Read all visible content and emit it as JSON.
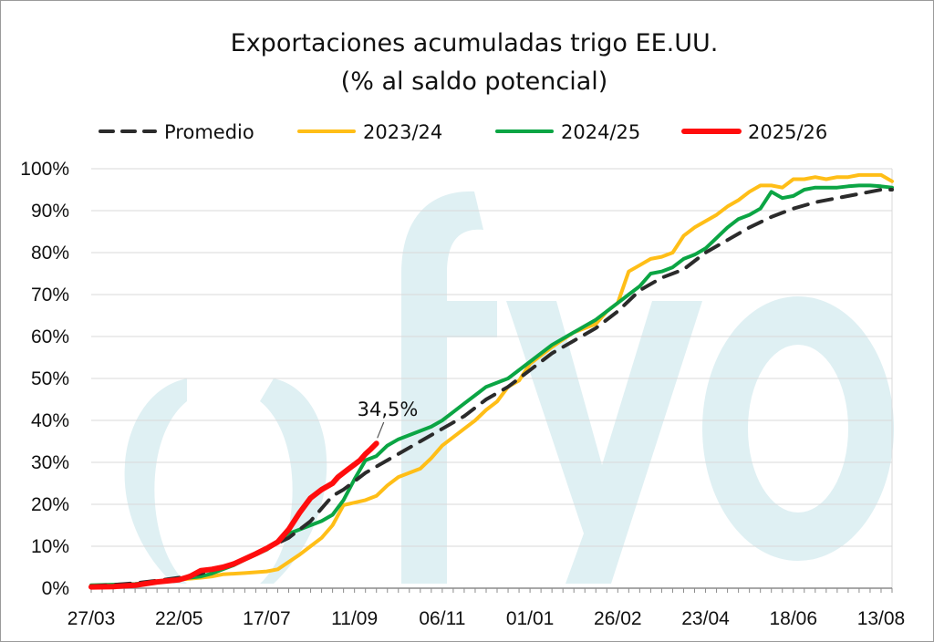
{
  "chart_data": {
    "type": "line",
    "title": [
      "Exportaciones acumuladas trigo EE.UU.",
      "(% al saldo potencial)"
    ],
    "xlabel": "",
    "ylabel": "",
    "x_tick_labels": [
      "27/03",
      "22/05",
      "17/07",
      "11/09",
      "06/11",
      "01/01",
      "26/02",
      "23/04",
      "18/06",
      "13/08"
    ],
    "x_range_weeks": [
      0,
      73
    ],
    "x_tick_week_positions": [
      0,
      8,
      16,
      24,
      32,
      40,
      48,
      56,
      64,
      72
    ],
    "y_ticks": [
      "0%",
      "10%",
      "20%",
      "30%",
      "40%",
      "50%",
      "60%",
      "70%",
      "80%",
      "90%",
      "100%"
    ],
    "ylim": [
      0,
      100
    ],
    "grid": "horizontal",
    "legend_position": "top",
    "annotation": {
      "text": "34,5%",
      "week": 26,
      "value": 34.5
    },
    "watermark": "fyo",
    "series": [
      {
        "name": "Promedio",
        "color": "#2b2b2b",
        "dash": true,
        "points": [
          [
            0,
            0.5
          ],
          [
            2,
            0.8
          ],
          [
            4,
            1.2
          ],
          [
            6,
            1.8
          ],
          [
            8,
            2.5
          ],
          [
            10,
            3.5
          ],
          [
            12,
            5
          ],
          [
            14,
            7
          ],
          [
            16,
            9.5
          ],
          [
            18,
            12
          ],
          [
            20,
            16
          ],
          [
            21,
            19
          ],
          [
            22,
            22
          ],
          [
            23,
            23.5
          ],
          [
            24,
            25.5
          ],
          [
            25,
            27.5
          ],
          [
            26,
            29
          ],
          [
            28,
            32
          ],
          [
            30,
            35
          ],
          [
            32,
            38
          ],
          [
            34,
            41
          ],
          [
            36,
            45
          ],
          [
            38,
            48
          ],
          [
            40,
            52
          ],
          [
            42,
            56
          ],
          [
            44,
            59
          ],
          [
            46,
            62
          ],
          [
            48,
            66
          ],
          [
            50,
            71
          ],
          [
            52,
            74
          ],
          [
            54,
            76
          ],
          [
            56,
            80
          ],
          [
            58,
            83
          ],
          [
            60,
            86
          ],
          [
            62,
            88.5
          ],
          [
            64,
            90.5
          ],
          [
            66,
            92
          ],
          [
            68,
            93
          ],
          [
            70,
            94
          ],
          [
            72,
            95
          ],
          [
            73,
            95
          ]
        ]
      },
      {
        "name": "2023/24",
        "color": "#ffbe17",
        "dash": false,
        "points": [
          [
            0,
            0.5
          ],
          [
            4,
            1
          ],
          [
            7,
            1.8
          ],
          [
            10,
            2.5
          ],
          [
            11,
            2.8
          ],
          [
            12,
            3.3
          ],
          [
            14,
            3.6
          ],
          [
            16,
            4
          ],
          [
            17,
            4.5
          ],
          [
            19,
            8
          ],
          [
            20,
            10
          ],
          [
            21,
            12
          ],
          [
            22,
            15
          ],
          [
            23,
            19.8
          ],
          [
            25,
            21
          ],
          [
            26,
            22
          ],
          [
            27,
            24.5
          ],
          [
            28,
            26.5
          ],
          [
            30,
            28.5
          ],
          [
            31,
            31
          ],
          [
            32,
            34
          ],
          [
            34,
            38
          ],
          [
            35,
            40
          ],
          [
            36,
            42.5
          ],
          [
            37,
            44.5
          ],
          [
            38,
            48
          ],
          [
            39,
            49.5
          ],
          [
            40,
            53.5
          ],
          [
            42,
            57.5
          ],
          [
            44,
            61
          ],
          [
            46,
            63
          ],
          [
            47,
            66
          ],
          [
            48,
            68
          ],
          [
            49,
            75.5
          ],
          [
            50,
            77
          ],
          [
            51,
            78.5
          ],
          [
            52,
            79
          ],
          [
            53,
            80
          ],
          [
            54,
            84
          ],
          [
            55,
            86
          ],
          [
            57,
            89
          ],
          [
            58,
            91
          ],
          [
            59,
            92.5
          ],
          [
            60,
            94.5
          ],
          [
            61,
            96
          ],
          [
            62,
            96
          ],
          [
            63,
            95.5
          ],
          [
            64,
            97.5
          ],
          [
            65,
            97.5
          ],
          [
            66,
            98
          ],
          [
            67,
            97.5
          ],
          [
            68,
            98
          ],
          [
            69,
            98
          ],
          [
            70,
            98.5
          ],
          [
            71,
            98.5
          ],
          [
            72,
            98.5
          ],
          [
            73,
            97
          ]
        ]
      },
      {
        "name": "2024/25",
        "color": "#0ba544",
        "dash": false,
        "points": [
          [
            0,
            0.7
          ],
          [
            4,
            1
          ],
          [
            6,
            1.5
          ],
          [
            8,
            2.2
          ],
          [
            10,
            2.8
          ],
          [
            11,
            3.5
          ],
          [
            12,
            4.5
          ],
          [
            13,
            5.5
          ],
          [
            14,
            6.8
          ],
          [
            16,
            9.2
          ],
          [
            17,
            11
          ],
          [
            18,
            13
          ],
          [
            19,
            14
          ],
          [
            20,
            15
          ],
          [
            21,
            16
          ],
          [
            22,
            17.5
          ],
          [
            23,
            21
          ],
          [
            24,
            26
          ],
          [
            25,
            30.5
          ],
          [
            26,
            31.5
          ],
          [
            27,
            34
          ],
          [
            28,
            35.5
          ],
          [
            29,
            36.5
          ],
          [
            30,
            37.5
          ],
          [
            31,
            38.5
          ],
          [
            32,
            40
          ],
          [
            33,
            42
          ],
          [
            34,
            44
          ],
          [
            35,
            46
          ],
          [
            36,
            48
          ],
          [
            38,
            50
          ],
          [
            40,
            54
          ],
          [
            42,
            58
          ],
          [
            44,
            61
          ],
          [
            46,
            64
          ],
          [
            48,
            68
          ],
          [
            49,
            70
          ],
          [
            50,
            72
          ],
          [
            51,
            75
          ],
          [
            52,
            75.5
          ],
          [
            53,
            76.5
          ],
          [
            54,
            78.5
          ],
          [
            55,
            79.5
          ],
          [
            56,
            81
          ],
          [
            57,
            83.5
          ],
          [
            58,
            86
          ],
          [
            59,
            88
          ],
          [
            60,
            89
          ],
          [
            61,
            90.5
          ],
          [
            62,
            94.5
          ],
          [
            63,
            93
          ],
          [
            64,
            93.5
          ],
          [
            65,
            95
          ],
          [
            66,
            95.5
          ],
          [
            67,
            95.5
          ],
          [
            68,
            95.5
          ],
          [
            69,
            95.8
          ],
          [
            70,
            96
          ],
          [
            71,
            96
          ],
          [
            72,
            95.8
          ],
          [
            73,
            95.5
          ]
        ]
      },
      {
        "name": "2025/26",
        "color": "#ff0d0d",
        "dash": false,
        "points": [
          [
            0,
            0.3
          ],
          [
            2,
            0.4
          ],
          [
            4,
            0.7
          ],
          [
            6,
            1.5
          ],
          [
            8,
            2
          ],
          [
            9,
            2.8
          ],
          [
            10,
            4.2
          ],
          [
            11,
            4.5
          ],
          [
            12,
            5
          ],
          [
            13,
            5.8
          ],
          [
            14,
            7
          ],
          [
            15,
            8.2
          ],
          [
            16,
            9.5
          ],
          [
            17,
            11
          ],
          [
            18,
            14
          ],
          [
            19,
            18
          ],
          [
            20,
            21.5
          ],
          [
            21,
            23.5
          ],
          [
            22,
            25
          ],
          [
            22.5,
            26.5
          ],
          [
            23,
            27.5
          ],
          [
            23.5,
            28.5
          ],
          [
            24,
            29.5
          ],
          [
            24.5,
            30.5
          ],
          [
            25,
            32
          ],
          [
            25.5,
            33.2
          ],
          [
            26,
            34.5
          ]
        ]
      }
    ]
  }
}
